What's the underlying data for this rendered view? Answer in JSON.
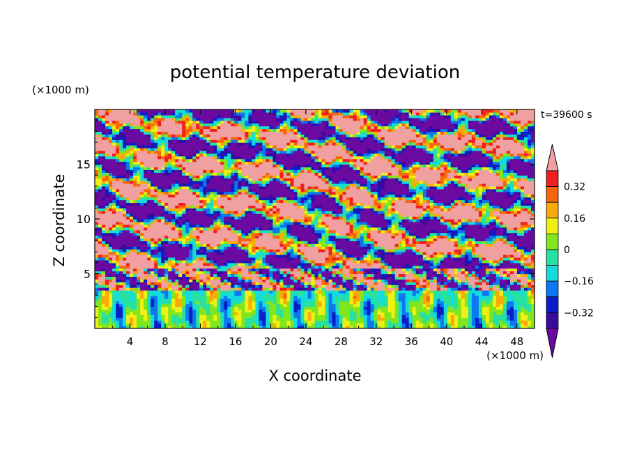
{
  "chart_data": {
    "type": "heatmap",
    "title": "potential temperature deviation",
    "xlabel": "X coordinate",
    "ylabel": "Z coordinate",
    "x_unit": "(×1000 m)",
    "y_unit": "(×1000 m)",
    "time_label": "t=39600 s",
    "xlim": [
      0,
      50
    ],
    "ylim": [
      0,
      20
    ],
    "x_ticks": [
      4,
      8,
      12,
      16,
      20,
      24,
      28,
      32,
      36,
      40,
      44,
      48
    ],
    "y_ticks": [
      5,
      10,
      15
    ],
    "colorbar": {
      "levels": [
        -0.4,
        -0.32,
        -0.24,
        -0.16,
        -0.08,
        0,
        0.08,
        0.16,
        0.24,
        0.32,
        0.4
      ],
      "labeled_levels": [
        0.32,
        0.16,
        0,
        -0.16,
        -0.32
      ],
      "labels": [
        "0.32",
        "0.16",
        "0",
        "−0.16",
        "−0.32"
      ],
      "colors": [
        "#6a0aa0",
        "#3a0aa0",
        "#0a1ec8",
        "#0a78f0",
        "#14dcdc",
        "#28e0a0",
        "#82e61e",
        "#f0f014",
        "#faaa0a",
        "#fa640a",
        "#f01e1e",
        "#f0a0a0"
      ],
      "extend": "both"
    },
    "description_of_field": {
      "lower_layer": {
        "z_range": [
          0,
          3.8
        ],
        "amplitude": "weak",
        "pattern": "broad vertical cells"
      },
      "inversion_layer": {
        "z_range": [
          3.5,
          5.5
        ],
        "amplitude": "strong",
        "pattern": "sharp alternating band"
      },
      "upper_layer": {
        "z_range": [
          5.5,
          20
        ],
        "amplitude": "strong",
        "pattern": "tilted gravity-wave bands"
      }
    }
  }
}
